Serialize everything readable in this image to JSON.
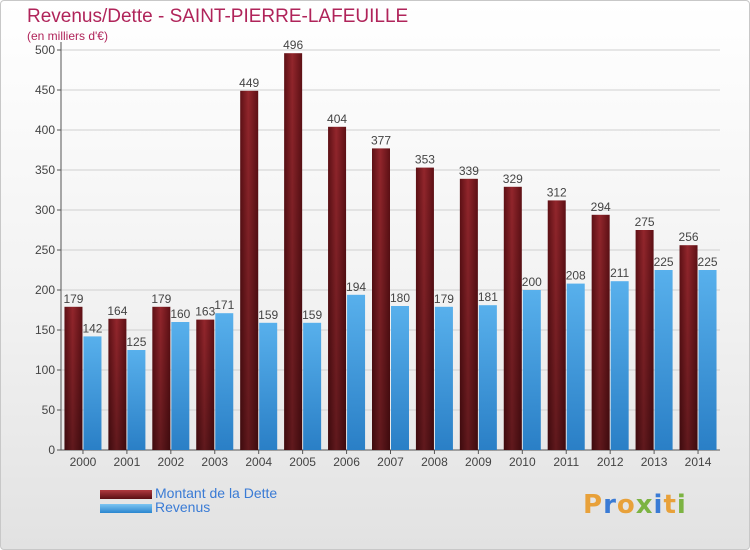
{
  "header": {
    "title": "Revenus/Dette - SAINT-PIERRE-LAFEUILLE",
    "subtitle": "(en milliers d'€)"
  },
  "legend": {
    "items": [
      {
        "label": "Montant de la Dette",
        "color": "#7a1a1f"
      },
      {
        "label": "Revenus",
        "color": "#3f9de0"
      }
    ]
  },
  "brand": {
    "text": "Proxiti",
    "letters": [
      "P",
      "r",
      "o",
      "x",
      "i",
      "t",
      "i"
    ]
  },
  "colors": {
    "dette": "#7a1a1f",
    "revenus": "#3f9de0",
    "title": "#b0245a",
    "brand": [
      "#e8a13a",
      "#3a7bd5",
      "#e8a13a",
      "#7cb342",
      "#3a7bd5",
      "#e8a13a",
      "#7cb342"
    ]
  },
  "chart_data": {
    "type": "bar",
    "categories": [
      "2000",
      "2001",
      "2002",
      "2003",
      "2004",
      "2005",
      "2006",
      "2007",
      "2008",
      "2009",
      "2010",
      "2011",
      "2012",
      "2013",
      "2014"
    ],
    "series": [
      {
        "name": "Montant de la Dette",
        "values": [
          179,
          164,
          179,
          163,
          449,
          496,
          404,
          377,
          353,
          339,
          329,
          312,
          294,
          275,
          256
        ]
      },
      {
        "name": "Revenus",
        "values": [
          142,
          125,
          160,
          171,
          159,
          159,
          194,
          180,
          179,
          181,
          200,
          208,
          211,
          225,
          225
        ]
      }
    ],
    "ylim": [
      0,
      500
    ],
    "yticks": [
      0,
      50,
      100,
      150,
      200,
      250,
      300,
      350,
      400,
      450,
      500
    ],
    "grid": true,
    "legend_position": "bottom-left"
  }
}
